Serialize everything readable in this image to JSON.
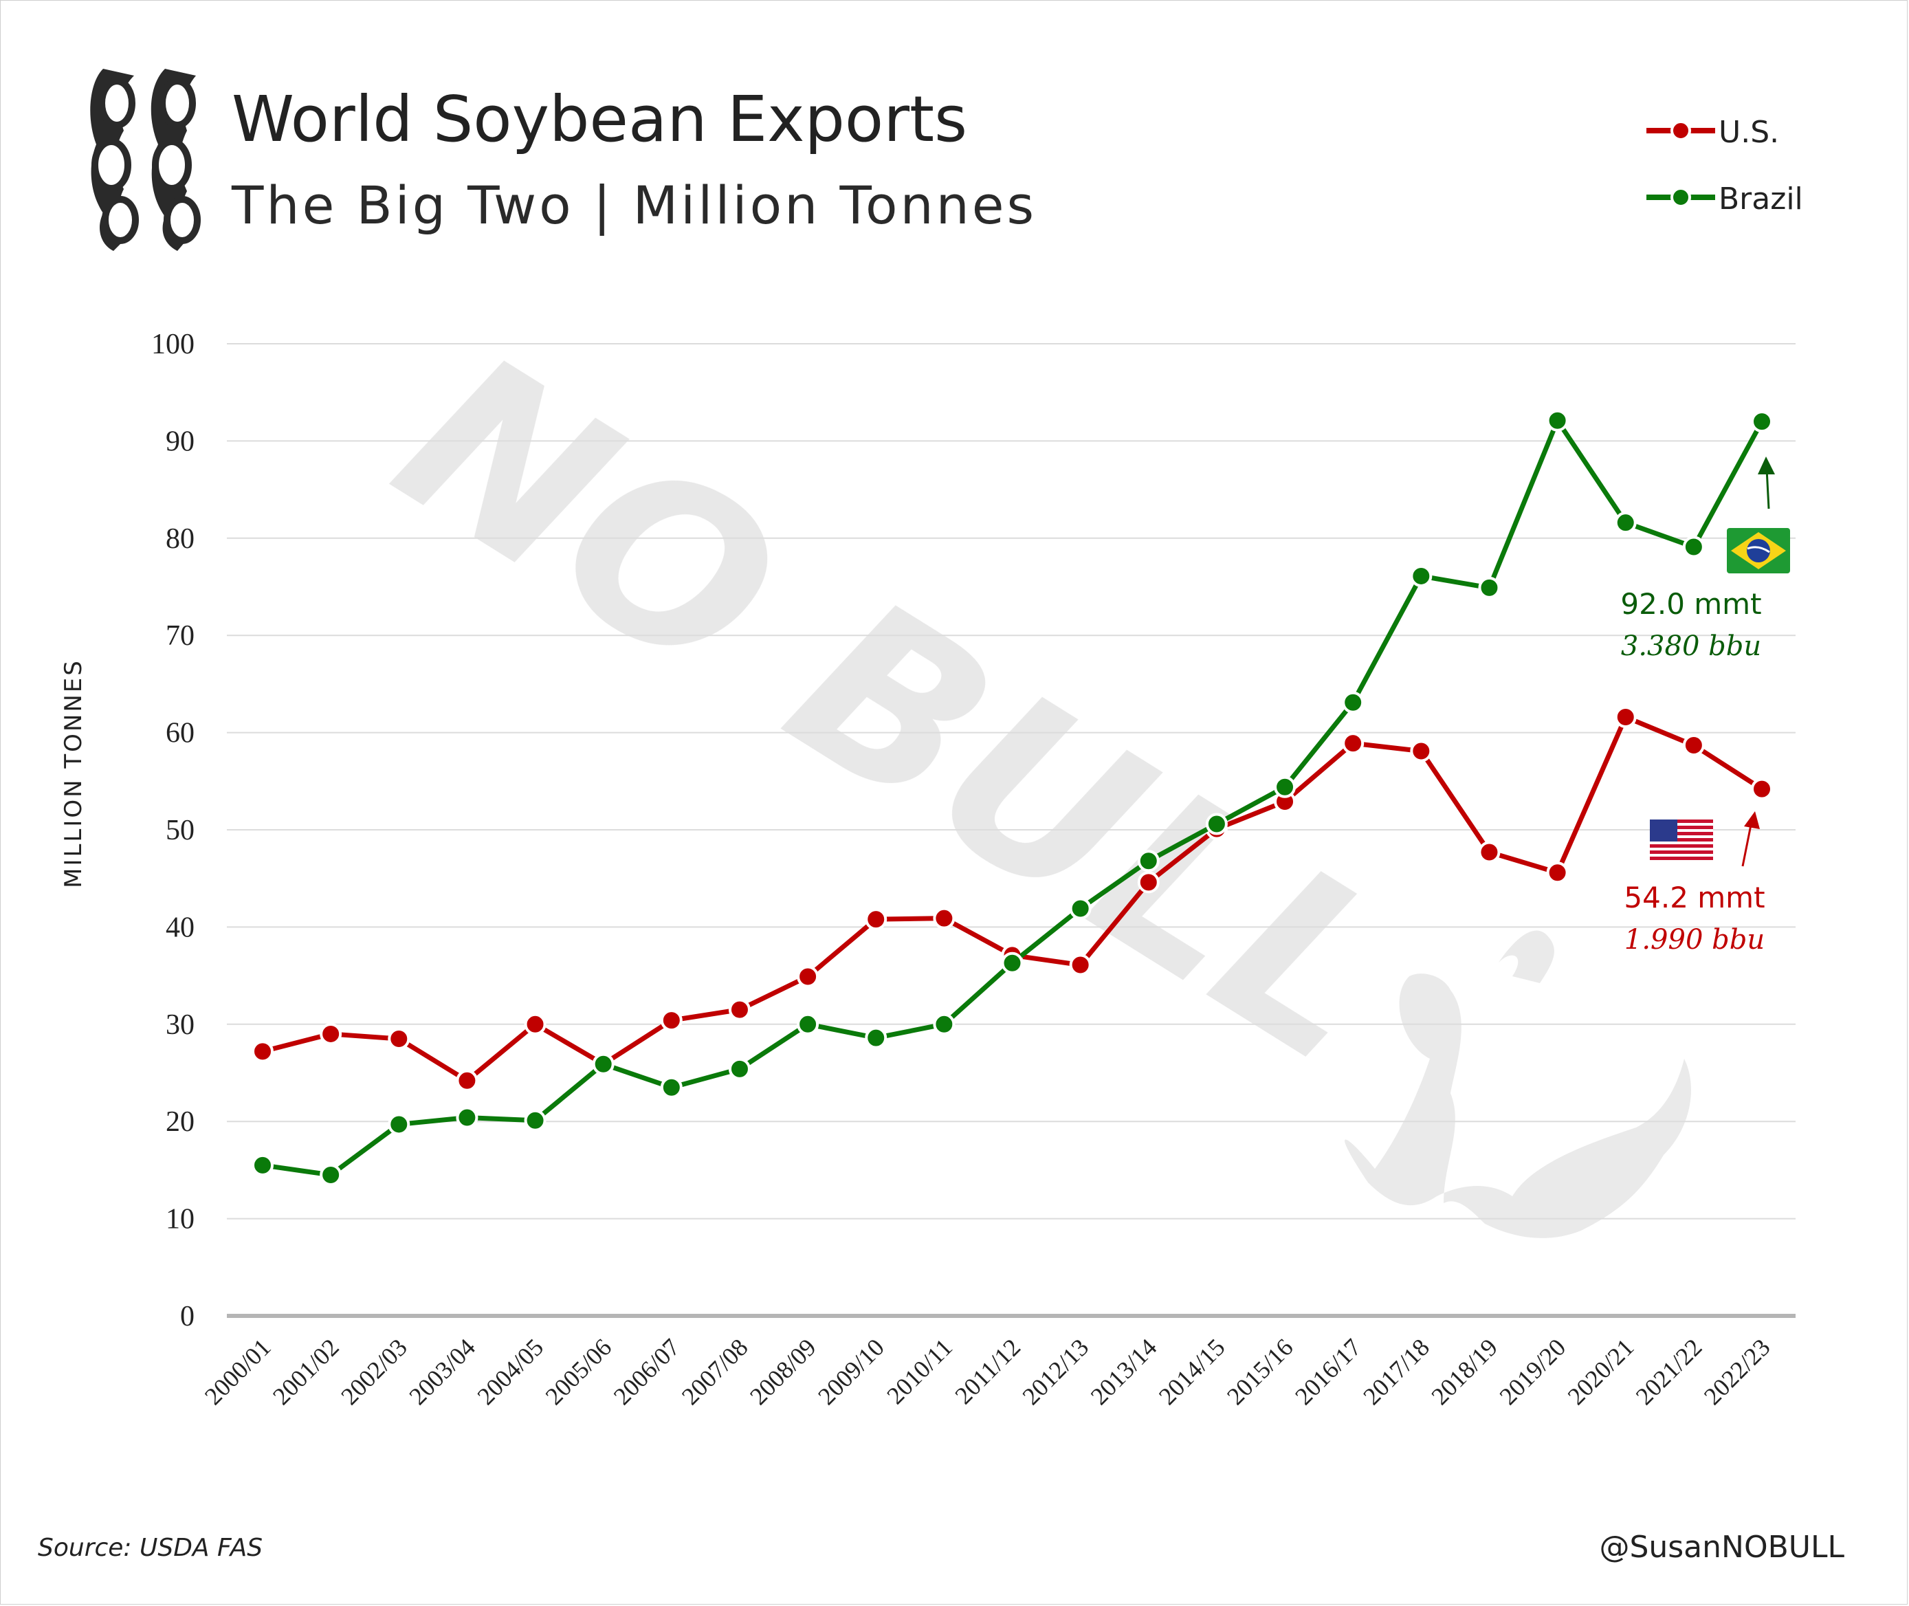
{
  "header": {
    "title": "World Soybean Exports",
    "subtitle": "The Big Two | Million Tonnes"
  },
  "legend": {
    "placement": "top-right",
    "items": [
      {
        "label": "U.S.",
        "color": "#c00000"
      },
      {
        "label": "Brazil",
        "color": "#0a7a0a"
      }
    ]
  },
  "watermark": {
    "text": "NO BULL"
  },
  "chart_data": {
    "type": "line",
    "title": "World Soybean Exports",
    "subtitle": "The Big Two | Million Tonnes",
    "ylabel": "MILLION TONNES",
    "xlabel": "",
    "ylim": [
      0,
      100
    ],
    "yticks": [
      0,
      10,
      20,
      30,
      40,
      50,
      60,
      70,
      80,
      90,
      100
    ],
    "grid": true,
    "categories": [
      "2000/01",
      "2001/02",
      "2002/03",
      "2003/04",
      "2004/05",
      "2005/06",
      "2006/07",
      "2007/08",
      "2008/09",
      "2009/10",
      "2010/11",
      "2011/12",
      "2012/13",
      "2013/14",
      "2014/15",
      "2015/16",
      "2016/17",
      "2017/18",
      "2018/19",
      "2019/20",
      "2020/21",
      "2021/22",
      "2022/23"
    ],
    "series": [
      {
        "name": "U.S.",
        "color": "#c00000",
        "values": [
          27.2,
          29.0,
          28.5,
          24.2,
          30.0,
          25.9,
          30.4,
          31.5,
          34.9,
          40.8,
          40.9,
          37.1,
          36.1,
          44.6,
          50.1,
          52.9,
          58.9,
          58.1,
          47.7,
          45.6,
          61.6,
          58.7,
          54.2
        ]
      },
      {
        "name": "Brazil",
        "color": "#0a7a0a",
        "values": [
          15.5,
          14.5,
          19.7,
          20.4,
          20.1,
          25.9,
          23.5,
          25.4,
          30.0,
          28.6,
          30.0,
          36.3,
          41.9,
          46.8,
          50.6,
          54.4,
          63.1,
          76.1,
          74.9,
          92.1,
          81.6,
          79.1,
          92.0
        ]
      }
    ],
    "annotations": [
      {
        "series": "Brazil",
        "line1": "92.0 mmt",
        "line2": "3.380 bbu",
        "color": "#0a5c0a"
      },
      {
        "series": "U.S.",
        "line1": "54.2 mmt",
        "line2": "1.990 bbu",
        "color": "#c00000"
      }
    ]
  },
  "footer": {
    "source": "Source: USDA FAS",
    "handle": "@SusanNOBULL"
  }
}
